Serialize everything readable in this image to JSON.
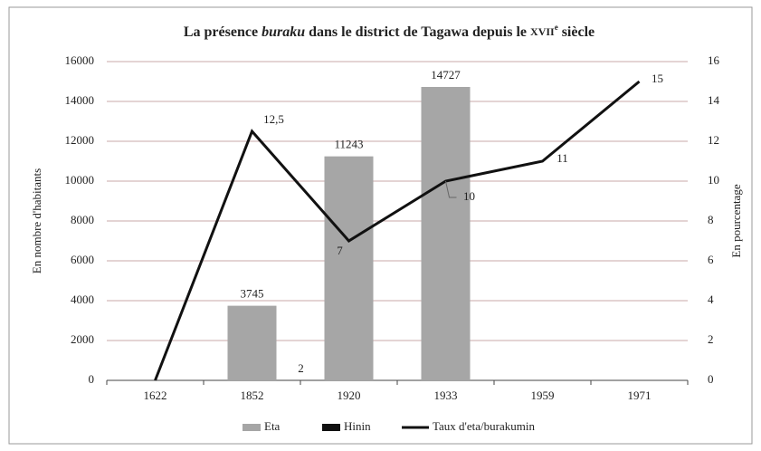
{
  "chart_data": {
    "type": "bar+line",
    "title_parts": [
      "La présence ",
      "buraku",
      " dans le district de Tagawa depuis le ",
      "XVII",
      "e",
      " siècle"
    ],
    "categories": [
      "1622",
      "1852",
      "1920",
      "1933",
      "1959",
      "1971"
    ],
    "series": [
      {
        "name": "Eta",
        "type": "bar",
        "color": "#a6a6a6",
        "values": [
          null,
          3745,
          11243,
          14727,
          null,
          null
        ]
      },
      {
        "name": "Hinin",
        "type": "bar",
        "color": "#111111",
        "values": [
          null,
          2,
          null,
          null,
          null,
          null
        ]
      },
      {
        "name": "Taux d'eta/burakumin",
        "type": "line",
        "axis": "y2",
        "color": "#111111",
        "values": [
          0,
          12.5,
          7,
          10,
          11,
          15
        ],
        "value_labels": [
          null,
          "12,5",
          "7",
          "10",
          "11",
          "15"
        ]
      }
    ],
    "ylabel": "En nombre d'habitants",
    "y2label": "En pourcentage",
    "ylim": [
      0,
      16000
    ],
    "yticks": [
      0,
      2000,
      4000,
      6000,
      8000,
      10000,
      12000,
      14000,
      16000
    ],
    "y2lim": [
      0,
      16
    ],
    "y2ticks": [
      0,
      2,
      4,
      6,
      8,
      10,
      12,
      14,
      16
    ],
    "grid": true,
    "legend": "bottom"
  }
}
